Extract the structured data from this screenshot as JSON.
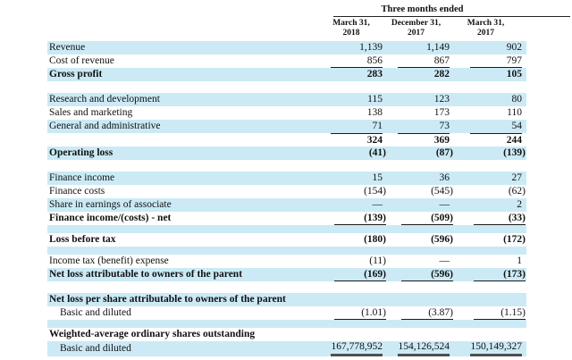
{
  "colors": {
    "row_highlight": "#cbeaf5",
    "rule": "#222222",
    "final_rule": "#4f4f4f"
  },
  "header": {
    "group_title": "Three months ended",
    "columns": [
      {
        "line1": "March 31,",
        "line2": "2018"
      },
      {
        "line1": "December 31,",
        "line2": "2017"
      },
      {
        "line1": "March 31,",
        "line2": "2017"
      }
    ]
  },
  "table": {
    "rows": [
      {
        "label": "Revenue",
        "values": [
          "1,139",
          "1,149",
          "902"
        ],
        "bg": "blue"
      },
      {
        "label": "Cost of revenue",
        "values": [
          "856",
          "867",
          "797"
        ],
        "bg": "white",
        "rule": "under"
      },
      {
        "label": "Gross profit",
        "values": [
          "283",
          "282",
          "105"
        ],
        "bg": "blue",
        "bold": true
      },
      {
        "gap": true,
        "bg": "white"
      },
      {
        "label": "Research and development",
        "values": [
          "115",
          "123",
          "80"
        ],
        "bg": "blue"
      },
      {
        "label": "Sales and marketing",
        "values": [
          "138",
          "173",
          "110"
        ],
        "bg": "white"
      },
      {
        "label": "General and administrative",
        "values": [
          "71",
          "73",
          "54"
        ],
        "bg": "blue"
      },
      {
        "label": "",
        "values": [
          "324",
          "369",
          "244"
        ],
        "bg": "white",
        "bold": true,
        "rule": "over"
      },
      {
        "label": "Operating loss",
        "values": [
          "(41)",
          "(87)",
          "(139)"
        ],
        "bg": "blue",
        "bold": true
      },
      {
        "gap": true,
        "bg": "white"
      },
      {
        "label": "Finance income",
        "values": [
          "15",
          "36",
          "27"
        ],
        "bg": "blue"
      },
      {
        "label": "Finance costs",
        "values": [
          "(154)",
          "(545)",
          "(62)"
        ],
        "bg": "white"
      },
      {
        "label": "Share in earnings of associate",
        "values": [
          "—",
          "—",
          "2"
        ],
        "bg": "blue"
      },
      {
        "label": "Finance income/(costs) - net",
        "values": [
          "(139)",
          "(509)",
          "(33)"
        ],
        "bg": "white",
        "bold": true,
        "rule": "under"
      },
      {
        "gap": true,
        "bg": "blue"
      },
      {
        "label": "Loss before tax",
        "values": [
          "(180)",
          "(596)",
          "(172)"
        ],
        "bg": "white",
        "bold": true
      },
      {
        "gap": true,
        "bg": "blue"
      },
      {
        "label": "Income tax (benefit) expense",
        "values": [
          "(11)",
          "—",
          "1"
        ],
        "bg": "white"
      },
      {
        "label": "Net loss attributable to owners of the parent",
        "values": [
          "(169)",
          "(596)",
          "(173)"
        ],
        "bg": "blue",
        "bold": true,
        "rule": "under"
      },
      {
        "gap": true,
        "bg": "white"
      },
      {
        "label": "Net loss per share attributable to owners of the parent",
        "values": [
          "",
          "",
          ""
        ],
        "bg": "blue",
        "bold": true
      },
      {
        "label": "Basic and diluted",
        "values": [
          "(1.01)",
          "(3.87)",
          "(1.15)"
        ],
        "bg": "white",
        "indent": true,
        "rule": "under"
      },
      {
        "gap": true,
        "bg": "blue"
      },
      {
        "label": "Weighted-average ordinary shares outstanding",
        "values": [
          "",
          "",
          ""
        ],
        "bg": "white",
        "bold": true
      },
      {
        "label": "Basic and diluted",
        "values": [
          "167,778,952",
          "154,126,524",
          "150,149,327"
        ],
        "bg": "blue",
        "indent": true,
        "rule": "thick"
      }
    ]
  }
}
